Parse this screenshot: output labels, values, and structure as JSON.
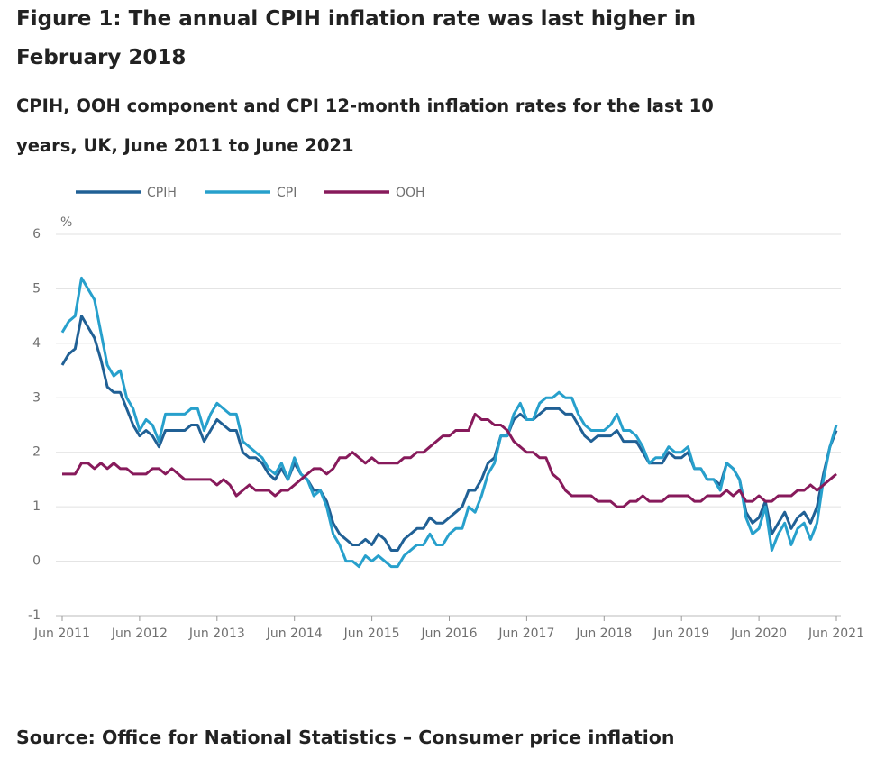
{
  "chart_data": {
    "type": "line",
    "title": "Figure 1: The annual CPIH inflation rate was last higher in February 2018",
    "subtitle": "CPIH, OOH component and CPI 12-month inflation rates for the last 10 years, UK, June 2011 to June 2021",
    "y_label": "%",
    "source": "Source: Office for National Statistics – Consumer price inflation",
    "categories": [
      "Jun 2011",
      null,
      null,
      null,
      null,
      null,
      null,
      null,
      null,
      null,
      null,
      null,
      "Jun 2012",
      null,
      null,
      null,
      null,
      null,
      null,
      null,
      null,
      null,
      null,
      null,
      "Jun 2013",
      null,
      null,
      null,
      null,
      null,
      null,
      null,
      null,
      null,
      null,
      null,
      "Jun 2014",
      null,
      null,
      null,
      null,
      null,
      null,
      null,
      null,
      null,
      null,
      null,
      "Jun 2015",
      null,
      null,
      null,
      null,
      null,
      null,
      null,
      null,
      null,
      null,
      null,
      "Jun 2016",
      null,
      null,
      null,
      null,
      null,
      null,
      null,
      null,
      null,
      null,
      null,
      "Jun 2017",
      null,
      null,
      null,
      null,
      null,
      null,
      null,
      null,
      null,
      null,
      null,
      "Jun 2018",
      null,
      null,
      null,
      null,
      null,
      null,
      null,
      null,
      null,
      null,
      null,
      "Jun 2019",
      null,
      null,
      null,
      null,
      null,
      null,
      null,
      null,
      null,
      null,
      null,
      "Jun 2020",
      null,
      null,
      null,
      null,
      null,
      null,
      null,
      null,
      null,
      null,
      null,
      "Jun 2021"
    ],
    "series": [
      {
        "name": "CPIH",
        "color": "#206095",
        "values": [
          3.6,
          3.8,
          3.9,
          4.5,
          4.3,
          4.1,
          3.7,
          3.2,
          3.1,
          3.1,
          2.8,
          2.5,
          2.3,
          2.4,
          2.3,
          2.1,
          2.4,
          2.4,
          2.4,
          2.4,
          2.5,
          2.5,
          2.2,
          2.4,
          2.6,
          2.5,
          2.4,
          2.4,
          2.0,
          1.9,
          1.9,
          1.8,
          1.6,
          1.5,
          1.7,
          1.5,
          1.8,
          1.6,
          1.5,
          1.3,
          1.3,
          1.1,
          0.7,
          0.5,
          0.4,
          0.3,
          0.3,
          0.4,
          0.3,
          0.5,
          0.4,
          0.2,
          0.2,
          0.4,
          0.5,
          0.6,
          0.6,
          0.8,
          0.7,
          0.7,
          0.8,
          0.9,
          1.0,
          1.3,
          1.3,
          1.5,
          1.8,
          1.9,
          2.3,
          2.3,
          2.6,
          2.7,
          2.6,
          2.6,
          2.7,
          2.8,
          2.8,
          2.8,
          2.7,
          2.7,
          2.5,
          2.3,
          2.2,
          2.3,
          2.3,
          2.3,
          2.4,
          2.2,
          2.2,
          2.2,
          2.0,
          1.8,
          1.8,
          1.8,
          2.0,
          1.9,
          1.9,
          2.0,
          1.7,
          1.7,
          1.5,
          1.5,
          1.4,
          1.8,
          1.7,
          1.5,
          0.9,
          0.7,
          0.8,
          1.1,
          0.5,
          0.7,
          0.9,
          0.6,
          0.8,
          0.9,
          0.7,
          1.0,
          1.6,
          2.1,
          2.4
        ]
      },
      {
        "name": "CPI",
        "color": "#27a0cc",
        "values": [
          4.2,
          4.4,
          4.5,
          5.2,
          5.0,
          4.8,
          4.2,
          3.6,
          3.4,
          3.5,
          3.0,
          2.8,
          2.4,
          2.6,
          2.5,
          2.2,
          2.7,
          2.7,
          2.7,
          2.7,
          2.8,
          2.8,
          2.4,
          2.7,
          2.9,
          2.8,
          2.7,
          2.7,
          2.2,
          2.1,
          2.0,
          1.9,
          1.7,
          1.6,
          1.8,
          1.5,
          1.9,
          1.6,
          1.5,
          1.2,
          1.3,
          1.0,
          0.5,
          0.3,
          0.0,
          0.0,
          -0.1,
          0.1,
          0.0,
          0.1,
          0.0,
          -0.1,
          -0.1,
          0.1,
          0.2,
          0.3,
          0.3,
          0.5,
          0.3,
          0.3,
          0.5,
          0.6,
          0.6,
          1.0,
          0.9,
          1.2,
          1.6,
          1.8,
          2.3,
          2.3,
          2.7,
          2.9,
          2.6,
          2.6,
          2.9,
          3.0,
          3.0,
          3.1,
          3.0,
          3.0,
          2.7,
          2.5,
          2.4,
          2.4,
          2.4,
          2.5,
          2.7,
          2.4,
          2.4,
          2.3,
          2.1,
          1.8,
          1.9,
          1.9,
          2.1,
          2.0,
          2.0,
          2.1,
          1.7,
          1.7,
          1.5,
          1.5,
          1.3,
          1.8,
          1.7,
          1.5,
          0.8,
          0.5,
          0.6,
          1.0,
          0.2,
          0.5,
          0.7,
          0.3,
          0.6,
          0.7,
          0.4,
          0.7,
          1.5,
          2.1,
          2.5
        ]
      },
      {
        "name": "OOH",
        "color": "#871a5b",
        "values": [
          1.6,
          1.6,
          1.6,
          1.8,
          1.8,
          1.7,
          1.8,
          1.7,
          1.8,
          1.7,
          1.7,
          1.6,
          1.6,
          1.6,
          1.7,
          1.7,
          1.6,
          1.7,
          1.6,
          1.5,
          1.5,
          1.5,
          1.5,
          1.5,
          1.4,
          1.5,
          1.4,
          1.2,
          1.3,
          1.4,
          1.3,
          1.3,
          1.3,
          1.2,
          1.3,
          1.3,
          1.4,
          1.5,
          1.6,
          1.7,
          1.7,
          1.6,
          1.7,
          1.9,
          1.9,
          2.0,
          1.9,
          1.8,
          1.9,
          1.8,
          1.8,
          1.8,
          1.8,
          1.9,
          1.9,
          2.0,
          2.0,
          2.1,
          2.2,
          2.3,
          2.3,
          2.4,
          2.4,
          2.4,
          2.7,
          2.6,
          2.6,
          2.5,
          2.5,
          2.4,
          2.2,
          2.1,
          2.0,
          2.0,
          1.9,
          1.9,
          1.6,
          1.5,
          1.3,
          1.2,
          1.2,
          1.2,
          1.2,
          1.1,
          1.1,
          1.1,
          1.0,
          1.0,
          1.1,
          1.1,
          1.2,
          1.1,
          1.1,
          1.1,
          1.2,
          1.2,
          1.2,
          1.2,
          1.1,
          1.1,
          1.2,
          1.2,
          1.2,
          1.3,
          1.2,
          1.3,
          1.1,
          1.1,
          1.2,
          1.1,
          1.1,
          1.2,
          1.2,
          1.2,
          1.3,
          1.3,
          1.4,
          1.3,
          1.4,
          1.5,
          1.6
        ]
      }
    ],
    "ylim": [
      -1,
      6
    ],
    "yticks": [
      -1,
      0,
      1,
      2,
      3,
      4,
      5,
      6
    ],
    "grid": true
  }
}
